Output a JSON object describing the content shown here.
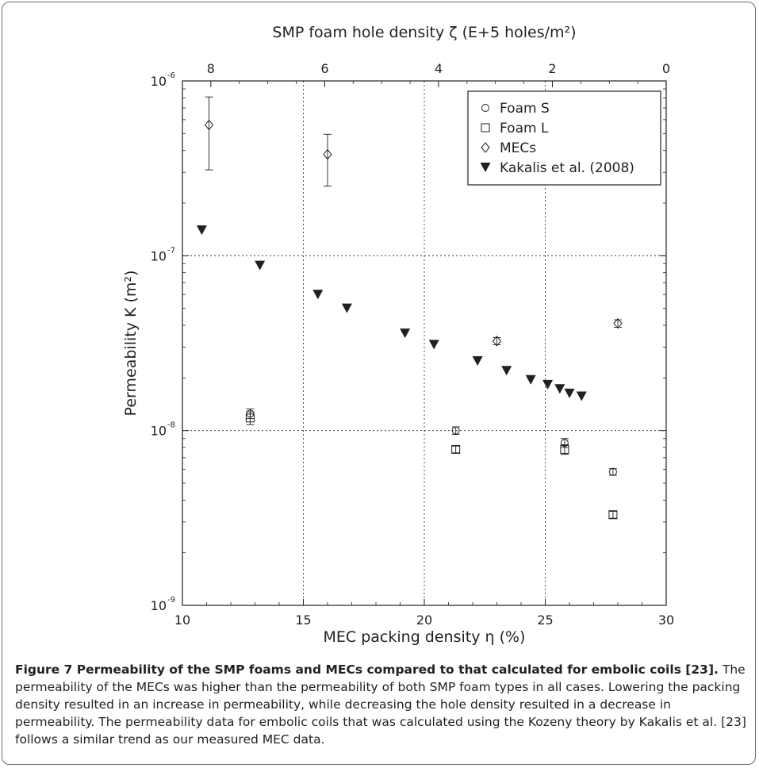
{
  "chart_data": {
    "type": "scatter",
    "top_axis_label": "SMP foam hole density ζ (E+5 holes/m²)",
    "top_ticks": [
      {
        "label": "8",
        "value": 8
      },
      {
        "label": "6",
        "value": 6
      },
      {
        "label": "4",
        "value": 4
      },
      {
        "label": "2",
        "value": 2
      },
      {
        "label": "0",
        "value": 0
      }
    ],
    "top_axis_range": [
      8.5,
      0
    ],
    "xlabel": "MEC packing density η (%)",
    "ylabel": "Permeability K (m²)",
    "xlim": [
      10,
      30
    ],
    "ylim": [
      1e-09,
      1e-06
    ],
    "yscale": "log",
    "x_ticks": [
      "10",
      "15",
      "20",
      "25",
      "30"
    ],
    "y_ticks": [
      {
        "base": "10",
        "exp": "-9",
        "value": 1e-09
      },
      {
        "base": "10",
        "exp": "-8",
        "value": 1e-08
      },
      {
        "base": "10",
        "exp": "-7",
        "value": 1e-07
      },
      {
        "base": "10",
        "exp": "-6",
        "value": 1e-06
      }
    ],
    "grid": true,
    "legend_position": "top-right",
    "series": [
      {
        "name": "Foam S",
        "marker": "circle",
        "points": [
          {
            "x": 12.8,
            "y": 1.25e-08,
            "err": 8e-10
          },
          {
            "x": 21.3,
            "y": 1e-08,
            "err": 5e-10
          },
          {
            "x": 25.8,
            "y": 8.5e-09,
            "err": 5e-10
          },
          {
            "x": 27.8,
            "y": 5.8e-09,
            "err": 2.5e-10
          }
        ]
      },
      {
        "name": "Foam L",
        "marker": "square",
        "points": [
          {
            "x": 12.8,
            "y": 1.18e-08,
            "err": 1e-09
          },
          {
            "x": 21.3,
            "y": 7.8e-09,
            "err": 3.5e-10
          },
          {
            "x": 25.8,
            "y": 7.8e-09,
            "err": 5e-10
          },
          {
            "x": 27.8,
            "y": 3.3e-09,
            "err": 1.5e-10
          }
        ]
      },
      {
        "name": "MECs",
        "marker": "diamond",
        "points": [
          {
            "x": 11.1,
            "y": 5.6e-07,
            "err_high": 8.1e-07,
            "err_low": 3.1e-07
          },
          {
            "x": 16.0,
            "y": 3.8e-07,
            "err_high": 4.95e-07,
            "err_low": 2.5e-07
          },
          {
            "x": 23.0,
            "y": 3.25e-08,
            "err_high": 3.4e-08,
            "err_low": 3.1e-08
          },
          {
            "x": 28.0,
            "y": 4.1e-08,
            "err_high": 4.3e-08,
            "err_low": 3.9e-08
          }
        ]
      },
      {
        "name": "Kakalis et al. (2008)",
        "marker": "triangle-down",
        "points": [
          {
            "x": 10.8,
            "y": 1.4e-07
          },
          {
            "x": 13.2,
            "y": 8.8e-08
          },
          {
            "x": 15.6,
            "y": 6e-08
          },
          {
            "x": 16.8,
            "y": 5e-08
          },
          {
            "x": 19.2,
            "y": 3.6e-08
          },
          {
            "x": 20.4,
            "y": 3.1e-08
          },
          {
            "x": 22.2,
            "y": 2.5e-08
          },
          {
            "x": 23.4,
            "y": 2.2e-08
          },
          {
            "x": 24.4,
            "y": 1.95e-08
          },
          {
            "x": 25.1,
            "y": 1.83e-08
          },
          {
            "x": 25.6,
            "y": 1.73e-08
          },
          {
            "x": 26.0,
            "y": 1.63e-08
          },
          {
            "x": 26.5,
            "y": 1.57e-08
          }
        ]
      }
    ]
  },
  "caption": {
    "title": "Figure 7 Permeability of the SMP foams and MECs compared to that calculated for embolic coils [23].",
    "body": "The permeability of the MECs was higher than the permeability of both SMP foam types in all cases. Lowering the packing density resulted in an increase in permeability, while decreasing the hole density resulted in a decrease in permeability. The permeability data for embolic coils that was calculated using the Kozeny theory by Kakalis et al. [23] follows a similar trend as our measured MEC data."
  }
}
